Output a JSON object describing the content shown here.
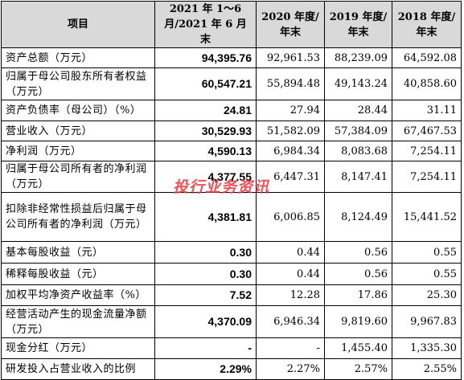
{
  "table": {
    "header": [
      "项目",
      "2021 年 1～6 月/2021 年 6 月末",
      "2020 年度/年末",
      "2019 年度/年末",
      "2018 年度/年末"
    ],
    "rows": [
      [
        "资产总额（万元）",
        "94,395.76",
        "92,961.53",
        "88,239.09",
        "64,592.08"
      ],
      [
        "归属于母公司股东所有者权益（万元）",
        "60,547.21",
        "55,894.48",
        "49,143.24",
        "40,858.60"
      ],
      [
        "资产负债率（母公司）（%）",
        "24.81",
        "27.94",
        "28.44",
        "31.11"
      ],
      [
        "营业收入（万元）",
        "30,529.93",
        "51,582.09",
        "57,384.09",
        "67,467.53"
      ],
      [
        "净利润（万元）",
        "4,590.13",
        "6,984.34",
        "8,083.68",
        "7,254.11"
      ],
      [
        "归属于母公司所有者的净利润（万元）",
        "4,377.55",
        "6,447.31",
        "8,147.41",
        "7,254.11"
      ],
      [
        "扣除非经常性损益后归属于母公司所有者的净利润（万元）",
        "4,381.81",
        "6,006.85",
        "8,124.49",
        "15,441.52"
      ],
      [
        "基本每股收益（元）",
        "0.30",
        "0.44",
        "0.56",
        "0.55"
      ],
      [
        "稀释每股收益（元）",
        "0.30",
        "0.44",
        "0.56",
        "0.55"
      ],
      [
        "加权平均净资产收益率（%）",
        "7.52",
        "12.28",
        "17.86",
        "25.30"
      ],
      [
        "经营活动产生的现金流量净额（万元）",
        "4,370.09",
        "6,946.34",
        "9,819.60",
        "9,967.83"
      ],
      [
        "现金分红（万元）",
        "-",
        "-",
        "1,455.40",
        "1,335.30"
      ],
      [
        "研发投入占营业收入的比例",
        "2.29%",
        "2.27%",
        "2.57%",
        "2.55%"
      ]
    ]
  },
  "watermark": "投行业务资讯"
}
